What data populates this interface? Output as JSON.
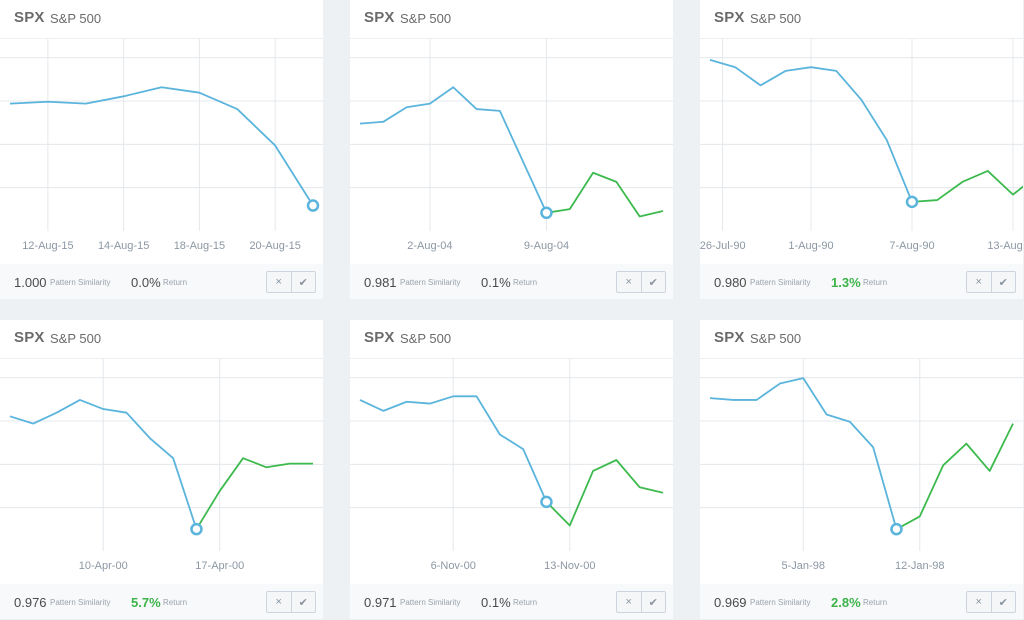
{
  "labels": {
    "similarity": "Pattern Similarity",
    "return": "Return"
  },
  "icons": {
    "reject": "×",
    "accept": "✔"
  },
  "colors": {
    "pattern_line": "#5ab4dc",
    "forward_line": "#3dba4e",
    "positive_return": "#3db34a",
    "gridline": "#e4e8ec"
  },
  "cards": [
    {
      "ticker": "SPX",
      "name": "S&P 500",
      "similarity": "1.000",
      "return": "0.0%",
      "return_positive": false,
      "chart_data": {
        "type": "line",
        "ylim": [
          0,
          100
        ],
        "xticks": [
          {
            "label": "12-Aug-15",
            "pos": 1
          },
          {
            "label": "14-Aug-15",
            "pos": 3
          },
          {
            "label": "18-Aug-15",
            "pos": 5
          },
          {
            "label": "20-Aug-15",
            "pos": 7
          }
        ],
        "x_count": 9,
        "pattern": [
          70,
          71,
          70,
          74,
          79,
          76,
          67,
          47,
          14
        ],
        "forward": []
      }
    },
    {
      "ticker": "SPX",
      "name": "S&P 500",
      "similarity": "0.981",
      "return": "0.1%",
      "return_positive": false,
      "chart_data": {
        "type": "line",
        "ylim": [
          0,
          100
        ],
        "xticks": [
          {
            "label": "2-Aug-04",
            "pos": 3
          },
          {
            "label": "9-Aug-04",
            "pos": 8
          }
        ],
        "x_count": 14,
        "pattern": [
          59,
          60,
          68,
          70,
          79,
          67,
          66,
          38,
          10
        ],
        "forward": [
          10,
          12,
          32,
          27,
          8,
          11
        ]
      }
    },
    {
      "ticker": "SPX",
      "name": "S&P 500",
      "similarity": "0.980",
      "return": "1.3%",
      "return_positive": true,
      "chart_data": {
        "type": "line",
        "ylim": [
          0,
          100
        ],
        "xticks": [
          {
            "label": "26-Jul-90",
            "pos": 0.5
          },
          {
            "label": "1-Aug-90",
            "pos": 4
          },
          {
            "label": "7-Aug-90",
            "pos": 8
          },
          {
            "label": "13-Aug-90",
            "pos": 12
          }
        ],
        "x_count": 13,
        "pattern": [
          94,
          90,
          80,
          88,
          90,
          88,
          72,
          50,
          16
        ],
        "forward": [
          16,
          17,
          27,
          33,
          20,
          31
        ]
      }
    },
    {
      "ticker": "SPX",
      "name": "S&P 500",
      "similarity": "0.976",
      "return": "5.7%",
      "return_positive": true,
      "chart_data": {
        "type": "line",
        "ylim": [
          0,
          100
        ],
        "xticks": [
          {
            "label": "10-Apr-00",
            "pos": 4
          },
          {
            "label": "17-Apr-00",
            "pos": 9
          }
        ],
        "x_count": 14,
        "pattern": [
          74,
          70,
          76,
          83,
          78,
          76,
          62,
          51,
          12
        ],
        "forward": [
          12,
          33,
          51,
          46,
          48,
          48
        ]
      }
    },
    {
      "ticker": "SPX",
      "name": "S&P 500",
      "similarity": "0.971",
      "return": "0.1%",
      "return_positive": false,
      "chart_data": {
        "type": "line",
        "ylim": [
          0,
          100
        ],
        "xticks": [
          {
            "label": "6-Nov-00",
            "pos": 4
          },
          {
            "label": "13-Nov-00",
            "pos": 9
          }
        ],
        "x_count": 14,
        "pattern": [
          83,
          77,
          82,
          81,
          85,
          85,
          64,
          56,
          27
        ],
        "forward": [
          27,
          14,
          44,
          50,
          35,
          32
        ]
      }
    },
    {
      "ticker": "SPX",
      "name": "S&P 500",
      "similarity": "0.969",
      "return": "2.8%",
      "return_positive": true,
      "chart_data": {
        "type": "line",
        "ylim": [
          0,
          100
        ],
        "xticks": [
          {
            "label": "5-Jan-98",
            "pos": 4
          },
          {
            "label": "12-Jan-98",
            "pos": 9
          }
        ],
        "x_count": 14,
        "pattern": [
          84,
          83,
          83,
          92,
          95,
          75,
          71,
          57,
          12
        ],
        "forward": [
          12,
          19,
          47,
          59,
          44,
          70
        ]
      }
    }
  ]
}
